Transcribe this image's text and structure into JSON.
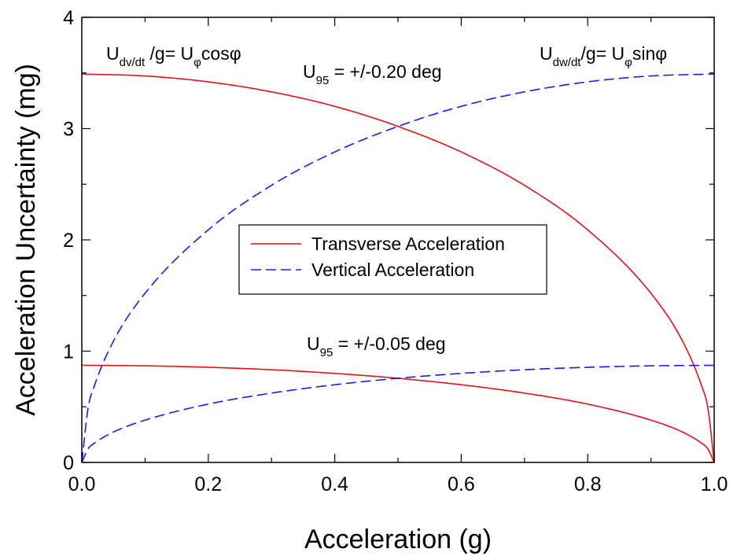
{
  "chart_data": {
    "type": "line",
    "xlabel": "Acceleration (g)",
    "ylabel": "Acceleration Uncertainty (mg)",
    "xlim": [
      0,
      1
    ],
    "ylim": [
      0,
      4
    ],
    "xticks": [
      0.0,
      0.2,
      0.4,
      0.6,
      0.8,
      1.0
    ],
    "xtick_labels": [
      "0.0",
      "0.2",
      "0.4",
      "0.6",
      "0.8",
      "1.0"
    ],
    "yticks": [
      0,
      1,
      2,
      3,
      4
    ],
    "ytick_labels": [
      "0",
      "1",
      "2",
      "3",
      "4"
    ],
    "grid": false,
    "legend": {
      "placement": "center",
      "entries": [
        {
          "label": "Transverse Acceleration",
          "color": "#e8101a",
          "dash": "solid"
        },
        {
          "label": "Vertical Acceleration",
          "color": "#1a1aff",
          "dash": "dashed"
        }
      ]
    },
    "series": [
      {
        "legend_entry": 0,
        "group": "U95 = +/-0.20 deg",
        "x": [
          0,
          0.1,
          0.2,
          0.3,
          0.4,
          0.5,
          0.6,
          0.7,
          0.8,
          0.9,
          0.95,
          0.98,
          0.99,
          1.0
        ],
        "y": [
          3.49,
          3.473,
          3.42,
          3.33,
          3.2,
          3.02,
          2.79,
          2.49,
          2.09,
          1.52,
          1.09,
          0.69,
          0.49,
          0
        ]
      },
      {
        "legend_entry": 1,
        "group": "U95 = +/-0.20 deg",
        "x": [
          0,
          0.01,
          0.02,
          0.05,
          0.1,
          0.2,
          0.3,
          0.4,
          0.5,
          0.6,
          0.7,
          0.8,
          0.9,
          1.0
        ],
        "y": [
          0,
          0.49,
          0.69,
          1.09,
          1.52,
          2.09,
          2.49,
          2.79,
          3.02,
          3.2,
          3.33,
          3.42,
          3.473,
          3.49
        ]
      },
      {
        "legend_entry": 0,
        "group": "U95 = +/-0.05 deg",
        "x": [
          0,
          0.1,
          0.2,
          0.3,
          0.4,
          0.5,
          0.6,
          0.7,
          0.8,
          0.9,
          0.95,
          0.98,
          0.99,
          1.0
        ],
        "y": [
          0.873,
          0.868,
          0.855,
          0.833,
          0.8,
          0.756,
          0.698,
          0.623,
          0.524,
          0.38,
          0.273,
          0.173,
          0.123,
          0
        ]
      },
      {
        "legend_entry": 1,
        "group": "U95 = +/-0.05 deg",
        "x": [
          0,
          0.01,
          0.02,
          0.05,
          0.1,
          0.2,
          0.3,
          0.4,
          0.5,
          0.6,
          0.7,
          0.8,
          0.9,
          1.0
        ],
        "y": [
          0,
          0.123,
          0.173,
          0.273,
          0.38,
          0.524,
          0.623,
          0.698,
          0.756,
          0.8,
          0.833,
          0.855,
          0.868,
          0.873
        ]
      }
    ],
    "annotations": {
      "formula_left": {
        "main": "U",
        "sub": "dv/dt",
        "tail1": " /g= U",
        "sub2": "φ",
        "tail2": "cosφ"
      },
      "formula_right": {
        "main": "U",
        "sub": "dw/dt",
        "tail1": "/g= U",
        "sub2": "φ",
        "tail2": "sinφ"
      },
      "u95_high": {
        "main": "U",
        "sub": "95",
        "tail": " = +/-0.20 deg"
      },
      "u95_low": {
        "main": "U",
        "sub": "95",
        "tail": " = +/-0.05 deg"
      }
    }
  }
}
